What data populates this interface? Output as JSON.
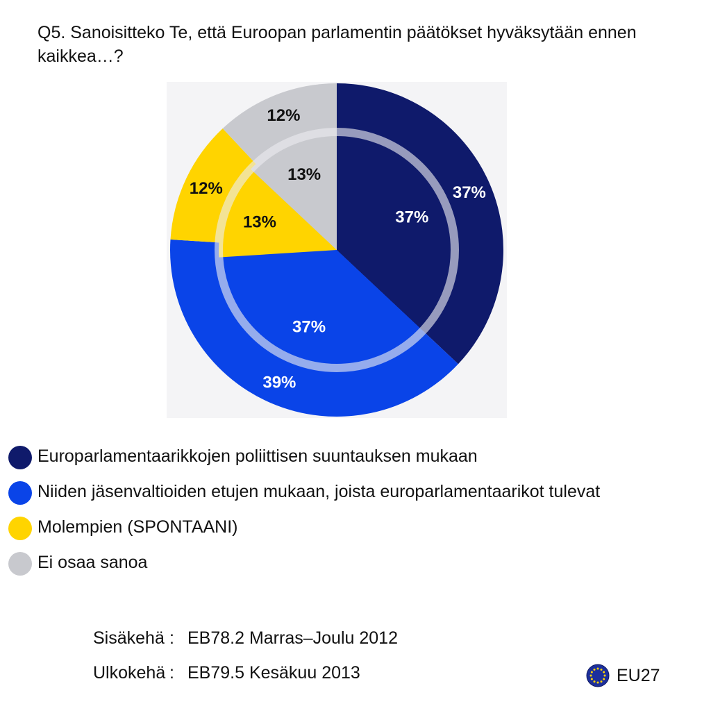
{
  "title": "Q5. Sanoisitteko Te, että Euroopan parlamentin päätökset hyväksytään ennen kaikkea…?",
  "chart_data": {
    "type": "pie",
    "subtype": "double-ring",
    "categories": [
      "Europarlamentaarikkojen poliittisen suuntauksen mukaan",
      "Niiden jäsenvaltioiden etujen mukaan, joista europarlamentaarikot tulevat",
      "Molempien (SPONTAANI)",
      "Ei osaa sanoa"
    ],
    "colors": [
      "#0f1a6b",
      "#0a44e8",
      "#ffd400",
      "#c8c9ce"
    ],
    "label_colors": [
      "#ffffff",
      "#ffffff",
      "#111111",
      "#111111"
    ],
    "series": [
      {
        "ring": "inner",
        "name": "Sisäkehä",
        "values": [
          37,
          37,
          13,
          13
        ],
        "labels": [
          "37%",
          "37%",
          "13%",
          "13%"
        ]
      },
      {
        "ring": "outer",
        "name": "Ulkokehä",
        "values": [
          37,
          39,
          12,
          12
        ],
        "labels": [
          "37%",
          "39%",
          "12%",
          "12%"
        ]
      }
    ]
  },
  "legend": [
    {
      "label": "Europarlamentaarikkojen poliittisen suuntauksen mukaan",
      "color": "#0f1a6b"
    },
    {
      "label": "Niiden jäsenvaltioiden etujen mukaan, joista europarlamentaarikot tulevat",
      "color": "#0a44e8"
    },
    {
      "label": "Molempien (SPONTAANI)",
      "color": "#ffd400"
    },
    {
      "label": "Ei osaa sanoa",
      "color": "#c8c9ce"
    }
  ],
  "notes": [
    {
      "key": "Sisäkehä",
      "sep": ":",
      "value": "EB78.2 Marras–Joulu 2012"
    },
    {
      "key": "Ulkokehä",
      "sep": ":",
      "value": "EB79.5 Kesäkuu 2013"
    }
  ],
  "badge": {
    "label": "EU27",
    "icon": "eu-flag-icon"
  }
}
